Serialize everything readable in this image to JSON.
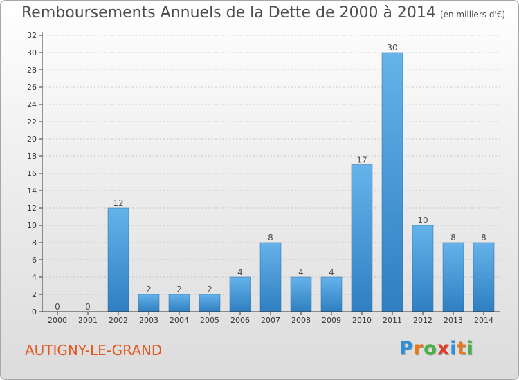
{
  "header": {
    "title": "Remboursements Annuels de la Dette de 2000 à 2014",
    "subtitle": "(en milliers d'€)"
  },
  "footer": {
    "town": "AUTIGNY-LE-GRAND",
    "logo_letters": [
      "P",
      "r",
      "o",
      "x",
      "i",
      "t",
      "i"
    ],
    "logo_colors": [
      "#2f8fd8",
      "#e9791e",
      "#49b146",
      "#e23b2c",
      "#2f8fd8",
      "#e9791e",
      "#49b146"
    ]
  },
  "colors": {
    "bar_light": "#65b3ea",
    "bar_dark": "#2f7fc1",
    "axis": "#333333",
    "grid": "#999999",
    "title": "#4d4d4d",
    "town": "#e0591e"
  },
  "chart_data": {
    "type": "bar",
    "title": "Remboursements Annuels de la Dette de 2000 à 2014",
    "subtitle": "(en milliers d'€)",
    "categories": [
      "2000",
      "2001",
      "2002",
      "2003",
      "2004",
      "2005",
      "2006",
      "2007",
      "2008",
      "2009",
      "2010",
      "2011",
      "2012",
      "2013",
      "2014"
    ],
    "values": [
      0,
      0,
      12,
      2,
      2,
      2,
      4,
      8,
      4,
      4,
      17,
      30,
      10,
      8,
      8
    ],
    "data_labels": [
      "0",
      "0",
      "12",
      "2",
      "2",
      "2",
      "4",
      "8",
      "4",
      "4",
      "17",
      "30",
      "10",
      "8",
      "8"
    ],
    "xlabel": "",
    "ylabel": "",
    "ylim": [
      0,
      32
    ],
    "yticks": [
      0,
      2,
      4,
      6,
      8,
      10,
      12,
      14,
      16,
      18,
      20,
      22,
      24,
      26,
      28,
      30,
      32
    ],
    "grid": "y-dashed-ticks",
    "legend": "none"
  }
}
